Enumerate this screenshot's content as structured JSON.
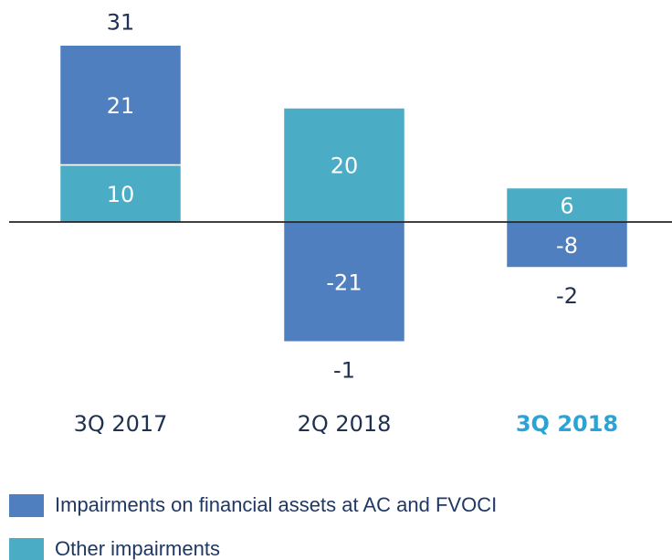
{
  "chart_data": {
    "type": "stacked_bar",
    "categories": [
      "3Q 2017",
      "2Q 2018",
      "3Q 2018"
    ],
    "series": [
      {
        "name": "Impairments on financial assets at AC and FVOCI",
        "color": "#4f7fbf",
        "values": [
          21,
          -21,
          -8
        ]
      },
      {
        "name": "Other impairments",
        "color": "#4aacc5",
        "values": [
          10,
          20,
          6
        ]
      }
    ],
    "totals": [
      31,
      -1,
      -2
    ],
    "highlight": 2,
    "highlight_color": "#2aa3d6"
  }
}
